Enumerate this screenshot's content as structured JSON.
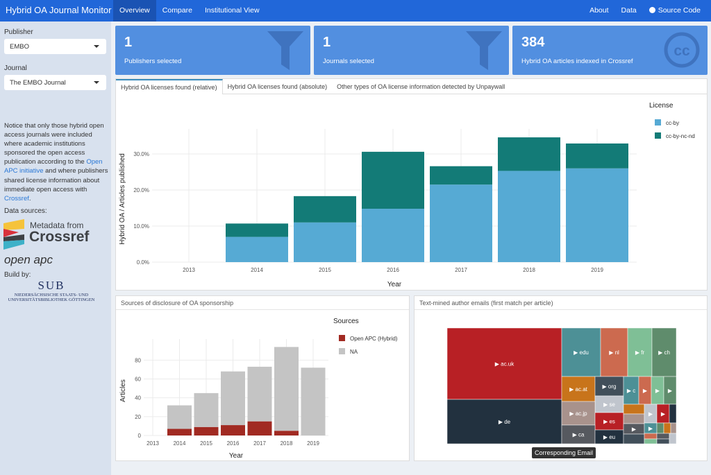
{
  "nav": {
    "brand": "Hybrid OA Journal Monitor",
    "tabs": [
      "Overview",
      "Compare",
      "Institutional View"
    ],
    "right": [
      "About",
      "Data",
      "Source Code"
    ]
  },
  "sidebar": {
    "publisher_label": "Publisher",
    "publisher_value": "EMBO",
    "journal_label": "Journal",
    "journal_value": "The EMBO Journal",
    "notice_1": "Notice that only those hybrid open access journals were included where academic institutions sponsored the open access publication according to the ",
    "notice_link1": "Open APC initiative",
    "notice_2": " and where publishers shared license information about immediate open access with ",
    "notice_link2": "Crossref",
    "notice_3": ".",
    "data_sources": "Data sources:",
    "crossref_logo_1": "Metadata from",
    "crossref_logo_2": "Crossref",
    "openapc_logo": "open apc",
    "build_by": "Build by:",
    "sub_logo": "SUB",
    "sub_text_1": "NIEDERSÄCHSISCHE STAATS- UND",
    "sub_text_2": "UNIVERSITÄTSBIBLIOTHEK GÖTTINGEN"
  },
  "value_boxes": [
    {
      "value": "1",
      "label": "Publishers selected",
      "icon": "filter-icon"
    },
    {
      "value": "1",
      "label": "Journals selected",
      "icon": "filter-icon"
    },
    {
      "value": "384",
      "label": "Hybrid OA articles indexed in Crossref",
      "icon": "creative-commons-icon"
    }
  ],
  "license_tabs": [
    "Hybrid OA licenses found (relative)",
    "Hybrid OA licenses found (absolute)",
    "Other types of OA license information detected by Unpaywall"
  ],
  "chart_data": [
    {
      "type": "bar",
      "stacked": true,
      "xlabel": "Year",
      "ylabel": "Hybrid OA / Articles published",
      "categories": [
        "2013",
        "2014",
        "2015",
        "2016",
        "2017",
        "2018",
        "2019"
      ],
      "yticks": [
        "0.0%",
        "10.0%",
        "20.0%",
        "30.0%"
      ],
      "ylim": [
        0,
        35
      ],
      "legend_title": "License",
      "legend_position": "right",
      "grid": true,
      "series": [
        {
          "name": "cc-by",
          "color": "#56aad4",
          "values": [
            0,
            7.0,
            11.0,
            14.8,
            21.5,
            25.3,
            26.0
          ]
        },
        {
          "name": "cc-by-nc-nd",
          "color": "#137b77",
          "values": [
            0,
            3.7,
            7.3,
            15.8,
            5.1,
            9.3,
            6.9
          ]
        }
      ]
    },
    {
      "type": "bar",
      "stacked": true,
      "title": "Sources of disclosure of OA sponsorship",
      "xlabel": "Year",
      "ylabel": "Articles",
      "categories": [
        "2013",
        "2014",
        "2015",
        "2016",
        "2017",
        "2018",
        "2019"
      ],
      "yticks": [
        "0",
        "20",
        "40",
        "60",
        "80"
      ],
      "ylim": [
        0,
        95
      ],
      "legend_title": "Sources",
      "legend_position": "right",
      "grid": true,
      "series": [
        {
          "name": "Open APC (Hybrid)",
          "color": "#a12a22",
          "values": [
            0,
            7,
            9,
            11,
            15,
            5,
            0
          ]
        },
        {
          "name": "NA",
          "color": "#c4c4c4",
          "values": [
            0,
            25,
            36,
            57,
            58,
            89,
            72
          ]
        }
      ]
    }
  ],
  "treemap": {
    "title": "Text-mined author emails (first match per article)",
    "tooltip": "Corresponding Email",
    "cells": [
      {
        "label": "ac.uk",
        "color": "#b82025"
      },
      {
        "label": "de",
        "color": "#22313f"
      },
      {
        "label": "edu",
        "color": "#4d9096"
      },
      {
        "label": "nl",
        "color": "#cc6a4f"
      },
      {
        "label": "fr",
        "color": "#7fbf96"
      },
      {
        "label": "ch",
        "color": "#5f8c6c"
      },
      {
        "label": "ac.at",
        "color": "#c8741b"
      },
      {
        "label": "org",
        "color": "#414f5a"
      },
      {
        "label": "se",
        "color": "#c0c5cd"
      },
      {
        "label": "ac.jp",
        "color": "#a8928c"
      },
      {
        "label": "es",
        "color": "#b82025"
      },
      {
        "label": "ca",
        "color": "#56595f"
      },
      {
        "label": "eu",
        "color": "#22313f"
      },
      {
        "label": "c",
        "color": "#4d9096"
      },
      {
        "label": "",
        "color": "#cc6a4f"
      },
      {
        "label": "",
        "color": "#7fbf96"
      },
      {
        "label": "",
        "color": "#5f8c6c"
      },
      {
        "label": "",
        "color": "#c8741b"
      },
      {
        "label": "",
        "color": "#a8928c"
      },
      {
        "label": "",
        "color": "#56595f"
      },
      {
        "label": "",
        "color": "#414f5a"
      },
      {
        "label": "",
        "color": "#c0c5cd"
      },
      {
        "label": "",
        "color": "#b82025"
      },
      {
        "label": "",
        "color": "#22313f"
      },
      {
        "label": "",
        "color": "#4d9096"
      },
      {
        "label": "",
        "color": "#5f8c6c"
      },
      {
        "label": "",
        "color": "#c8741b"
      },
      {
        "label": "",
        "color": "#a8928c"
      },
      {
        "label": "",
        "color": "#cc6a4f"
      },
      {
        "label": "",
        "color": "#56595f"
      },
      {
        "label": "",
        "color": "#7fbf96"
      },
      {
        "label": "",
        "color": "#414f5a"
      },
      {
        "label": "",
        "color": "#c0c5cd"
      }
    ]
  }
}
